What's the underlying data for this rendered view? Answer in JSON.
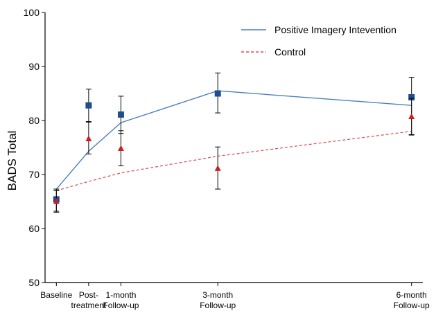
{
  "chart_data": {
    "type": "line",
    "title": "",
    "xlabel": "",
    "ylabel": "BADS Total",
    "ylim": [
      50,
      100
    ],
    "yticks": [
      50,
      60,
      70,
      80,
      90,
      100
    ],
    "x_timepoints": [
      0,
      1,
      2,
      5,
      11
    ],
    "categories": [
      [
        "Baseline"
      ],
      [
        "Post-",
        "treatment"
      ],
      [
        "1-month",
        "Follow-up"
      ],
      [
        "3-month",
        "Follow-up"
      ],
      [
        "6-month",
        "Follow-up"
      ]
    ],
    "legend_position": "top-right",
    "series": [
      {
        "name": "Positive Imagery Intevention",
        "color": "#4a7fc1",
        "line_style": "solid",
        "marker": "square",
        "marker_color": "#1f4e8c",
        "fit_line": [
          67.3,
          74.3,
          79.6,
          85.5,
          82.8
        ],
        "values": [
          65.4,
          82.8,
          81.1,
          85.0,
          84.3
        ],
        "error_low": [
          63.2,
          79.8,
          77.6,
          81.4,
          77.4
        ],
        "error_high": [
          67.3,
          85.8,
          84.5,
          88.8,
          88.0
        ]
      },
      {
        "name": "Control",
        "color": "#d94a4a",
        "line_style": "dashed",
        "marker": "triangle",
        "marker_color": "#cc1f1f",
        "fit_line": [
          67.0,
          68.7,
          70.3,
          73.4,
          78.0
        ],
        "values": [
          65.0,
          76.6,
          74.8,
          71.1,
          80.7
        ],
        "error_low": [
          63.0,
          73.8,
          71.6,
          67.3,
          77.3
        ],
        "error_high": [
          67.0,
          79.7,
          78.1,
          75.1,
          84.1
        ]
      }
    ]
  }
}
